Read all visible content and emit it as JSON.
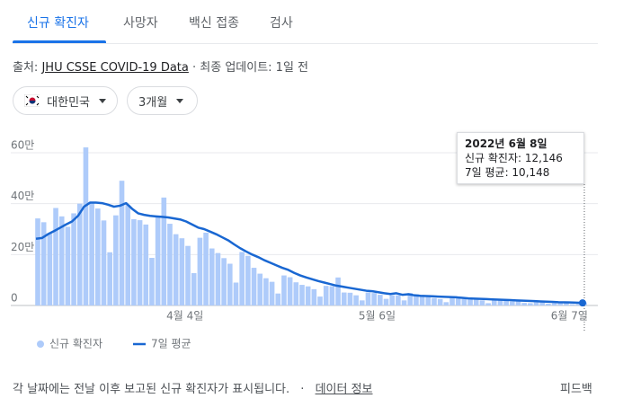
{
  "tabs": [
    "신규 확진자",
    "사망자",
    "백신 접종",
    "검사"
  ],
  "source": {
    "prefix": "출처:",
    "link": "JHU CSSE COVID-19 Data",
    "suffix": "· 최종 업데이트: 1일 전"
  },
  "filters": [
    "대한민국",
    "3개월"
  ],
  "tooltip": {
    "title": "2022년 6월 8일",
    "lines": [
      "신규 확진자: 12,146",
      "7일 평균: 10,148"
    ]
  },
  "footer": {
    "note": "각 날짜에는 전날 이후 보고된 신규 확진자가 표시됩니다.",
    "separator": "·",
    "link": "데이터 정보",
    "feedback": "피드백"
  },
  "chart_data": {
    "type": "bar_line",
    "categories": [
      null,
      null,
      null,
      null,
      null,
      null,
      null,
      null,
      null,
      null,
      null,
      null,
      null,
      null,
      null,
      null,
      null,
      null,
      null,
      null,
      null,
      null,
      null,
      null,
      null,
      null,
      "4월 4일",
      null,
      null,
      null,
      null,
      null,
      null,
      null,
      null,
      null,
      null,
      null,
      null,
      null,
      null,
      null,
      null,
      null,
      null,
      null,
      null,
      null,
      null,
      null,
      null,
      null,
      null,
      null,
      null,
      null,
      null,
      null,
      "5월 6일",
      null,
      null,
      null,
      null,
      null,
      null,
      null,
      null,
      null,
      null,
      null,
      null,
      null,
      null,
      null,
      null,
      null,
      null,
      null,
      null,
      null,
      null,
      null,
      null,
      null,
      null,
      null,
      null,
      null,
      null,
      null,
      "6월 7일",
      null
    ],
    "series": [
      {
        "name": "신규 확진자",
        "color": "#aecbfa",
        "values": [
          342000,
          327000,
          282000,
          383000,
          350000,
          309000,
          362000,
          400000,
          621000,
          407000,
          381000,
          334000,
          209000,
          354000,
          490000,
          395000,
          339000,
          335000,
          318000,
          187000,
          347000,
          424000,
          321000,
          280000,
          264000,
          234000,
          127000,
          266000,
          286000,
          224000,
          206000,
          186000,
          164000,
          90000,
          210000,
          195000,
          148000,
          125000,
          107000,
          93000,
          47000,
          118000,
          111000,
          91000,
          81000,
          75000,
          64000,
          35000,
          77000,
          76000,
          110000,
          51000,
          50000,
          40000,
          20000,
          51000,
          49000,
          42000,
          26000,
          40000,
          40000,
          20000,
          49000,
          44000,
          35000,
          33000,
          29000,
          25000,
          13000,
          36000,
          30000,
          26000,
          23000,
          25000,
          20000,
          9000,
          23000,
          20000,
          18000,
          16000,
          17000,
          10000,
          9000,
          14000,
          13000,
          7000,
          10000,
          12000,
          9000,
          5000,
          6000,
          12146
        ]
      },
      {
        "name": "7일 평균",
        "color": "#1967d2",
        "values": [
          262000,
          265000,
          280000,
          292000,
          305000,
          318000,
          330000,
          352000,
          388000,
          404000,
          404000,
          402000,
          396000,
          388000,
          392000,
          402000,
          380000,
          362000,
          356000,
          352000,
          350000,
          348000,
          346000,
          342000,
          338000,
          330000,
          318000,
          306000,
          300000,
          290000,
          280000,
          268000,
          256000,
          240000,
          225000,
          212000,
          200000,
          190000,
          178000,
          168000,
          158000,
          148000,
          140000,
          128000,
          118000,
          110000,
          103000,
          96000,
          90000,
          84000,
          78000,
          74000,
          70000,
          66000,
          62000,
          58000,
          56000,
          52000,
          48000,
          45000,
          48000,
          42000,
          44000,
          40000,
          38000,
          37000,
          36000,
          35000,
          34000,
          33000,
          32000,
          30000,
          28000,
          27000,
          26000,
          25000,
          24000,
          23000,
          22000,
          21000,
          20000,
          19000,
          18000,
          17000,
          16000,
          15000,
          14000,
          13000,
          12500,
          11800,
          11000,
          10148
        ]
      }
    ],
    "ylim": [
      0,
      600000
    ],
    "yticks": [
      0,
      {
        "value": 200000,
        "label": "20만"
      },
      {
        "value": 400000,
        "label": "40만"
      },
      {
        "value": 600000,
        "label": "60만"
      }
    ],
    "grid": true
  }
}
